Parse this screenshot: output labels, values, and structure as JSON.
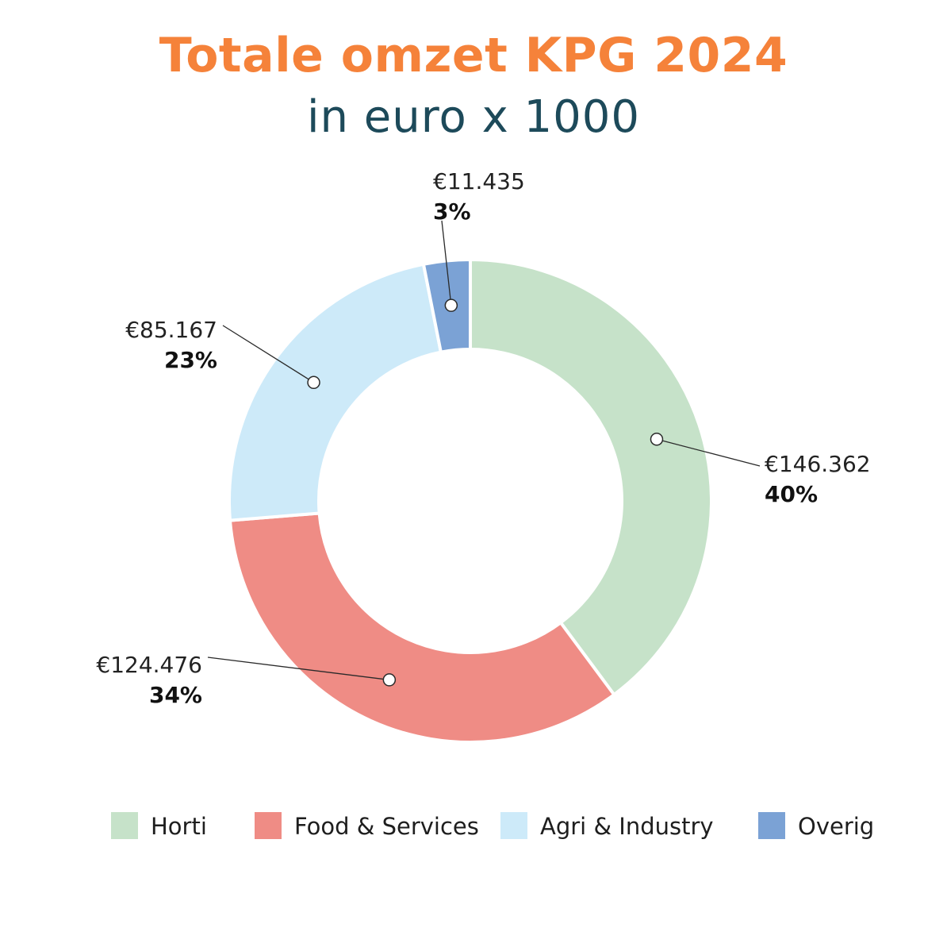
{
  "title": "Totale omzet KPG 2024",
  "subtitle": "in euro x 1000",
  "chart_data": {
    "type": "pie",
    "donut": true,
    "title": "Totale omzet KPG 2024",
    "subtitle": "in euro x 1000",
    "legend_position": "bottom",
    "slices": [
      {
        "name": "Horti",
        "value": 146362,
        "value_label": "€146.362",
        "percent_label": "40%",
        "color": "#c6e2c9"
      },
      {
        "name": "Food & Services",
        "value": 124476,
        "value_label": "€124.476",
        "percent_label": "34%",
        "color": "#ef8c85"
      },
      {
        "name": "Agri & Industry",
        "value": 85167,
        "value_label": "€85.167",
        "percent_label": "23%",
        "color": "#cdeaf9"
      },
      {
        "name": "Overig",
        "value": 11435,
        "value_label": "€11.435",
        "percent_label": "3%",
        "color": "#7ba2d5"
      }
    ]
  }
}
